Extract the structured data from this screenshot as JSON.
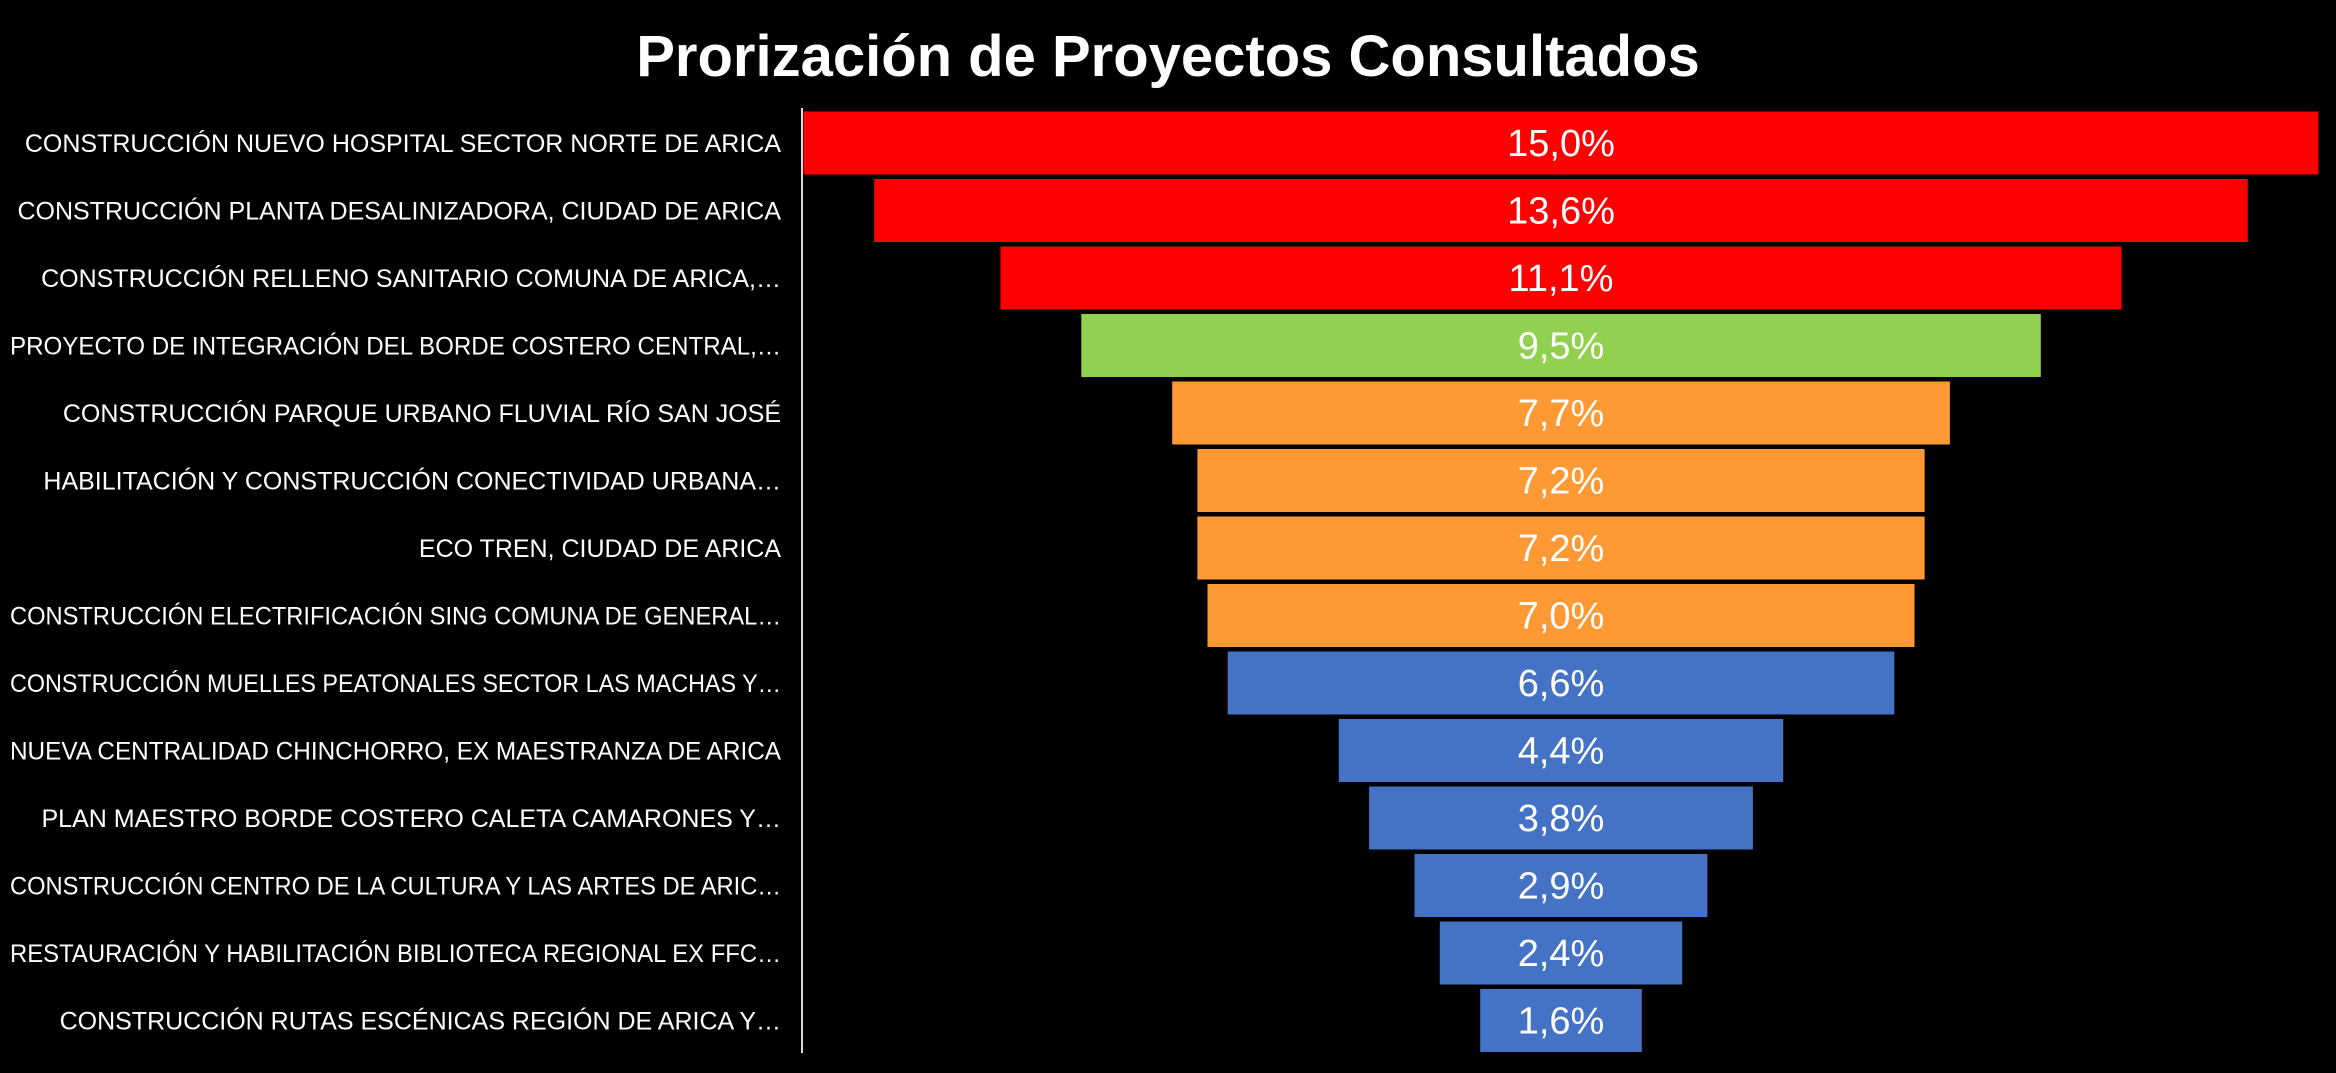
{
  "chart_data": {
    "type": "bar",
    "subtype": "funnel",
    "title": "Prorización de Proyectos Consultados",
    "xlabel": "",
    "ylabel": "",
    "categories": [
      "CONSTRUCCIÓN NUEVO HOSPITAL SECTOR NORTE DE ARICA",
      "CONSTRUCCIÓN PLANTA DESALINIZADORA, CIUDAD DE ARICA",
      "CONSTRUCCIÓN RELLENO SANITARIO COMUNA DE ARICA,…",
      "PROYECTO DE INTEGRACIÓN DEL BORDE COSTERO CENTRAL,…",
      "CONSTRUCCIÓN PARQUE URBANO FLUVIAL RÍO SAN JOSÉ",
      "HABILITACIÓN Y CONSTRUCCIÓN CONECTIVIDAD URBANA…",
      "ECO TREN, CIUDAD DE ARICA",
      "CONSTRUCCIÓN ELECTRIFICACIÓN SING COMUNA DE GENERAL…",
      "CONSTRUCCIÓN MUELLES PEATONALES SECTOR LAS MACHAS Y…",
      "NUEVA CENTRALIDAD CHINCHORRO, EX MAESTRANZA DE ARICA",
      "PLAN MAESTRO BORDE COSTERO CALETA CAMARONES Y…",
      "CONSTRUCCIÓN CENTRO DE LA CULTURA Y LAS ARTES DE ARIC…",
      "RESTAURACIÓN Y HABILITACIÓN BIBLIOTECA REGIONAL EX FFC…",
      "CONSTRUCCIÓN RUTAS ESCÉNICAS REGIÓN DE ARICA Y…"
    ],
    "values": [
      15.0,
      13.6,
      11.1,
      9.5,
      7.7,
      7.2,
      7.2,
      7.0,
      6.6,
      4.4,
      3.8,
      2.9,
      2.4,
      1.6
    ],
    "data_labels": [
      "15,0%",
      "13,6%",
      "11,1%",
      "9,5%",
      "7,7%",
      "7,2%",
      "7,2%",
      "7,0%",
      "6,6%",
      "4,4%",
      "3,8%",
      "2,9%",
      "2,4%",
      "1,6%"
    ],
    "unit": "%",
    "bar_colors": [
      "#ff0000",
      "#ff0000",
      "#ff0000",
      "#92d050",
      "#ff9933",
      "#ff9933",
      "#ff9933",
      "#ff9933",
      "#4472c4",
      "#4472c4",
      "#4472c4",
      "#4472c4",
      "#4472c4",
      "#4472c4"
    ],
    "colors": {
      "background": "#000000",
      "text": "#ffffff",
      "axis_line": "#d9d9d9"
    },
    "bar_alignment": "centered",
    "grid": false,
    "legend": "none"
  }
}
